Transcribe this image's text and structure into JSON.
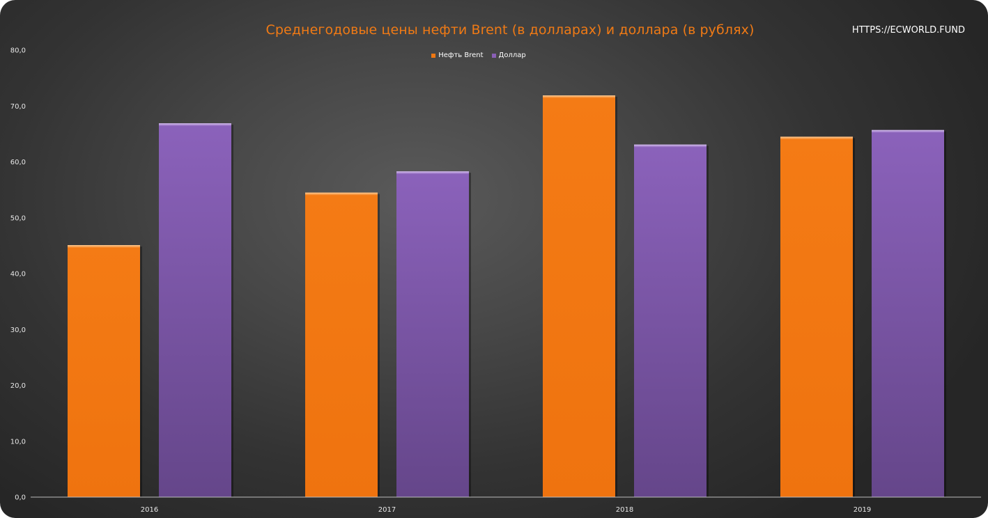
{
  "page": {
    "url_label": "HTTPS://ECWORLD.FUND"
  },
  "chart_data": {
    "type": "bar",
    "title": "Среднегодовые цены нефти Brent (в долларах) и доллара (в рублях)",
    "categories": [
      "2016",
      "2017",
      "2018",
      "2019"
    ],
    "series": [
      {
        "name": "Нефть Brent",
        "color": "#f07812",
        "values": [
          45.1,
          54.5,
          71.9,
          64.5
        ]
      },
      {
        "name": "Доллар",
        "color": "#8a5fb6",
        "values": [
          66.9,
          58.3,
          63.1,
          65.7
        ]
      }
    ],
    "yticks": [
      "0,0",
      "10,0",
      "20,0",
      "30,0",
      "40,0",
      "50,0",
      "60,0",
      "70,0",
      "80,0"
    ],
    "ylim": [
      0,
      80
    ],
    "legend_position": "top",
    "grid": false
  }
}
